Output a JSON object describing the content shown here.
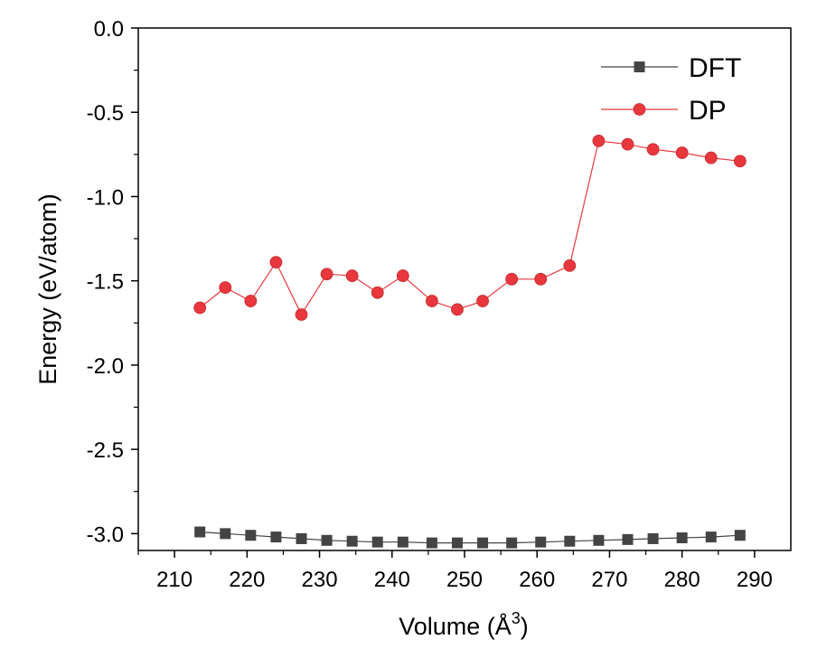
{
  "chart_data": {
    "type": "line",
    "xlabel": "Volume (Å",
    "xlabel_sup": "3",
    "xlabel_suffix": ")",
    "ylabel": "Energy (eV/atom)",
    "xlim": [
      205,
      295
    ],
    "ylim": [
      -3.1,
      0.0
    ],
    "xticks": [
      210,
      220,
      230,
      240,
      250,
      260,
      270,
      280,
      290
    ],
    "yticks": [
      0.0,
      -0.5,
      -1.0,
      -1.5,
      -2.0,
      -2.5,
      -3.0
    ],
    "xtick_labels": [
      "210",
      "220",
      "230",
      "240",
      "250",
      "260",
      "270",
      "280",
      "290"
    ],
    "ytick_labels": [
      "0.0",
      "-0.5",
      "-1.0",
      "-1.5",
      "-2.0",
      "-2.5",
      "-3.0"
    ],
    "grid": false,
    "legend_position": "top-right",
    "series": [
      {
        "name": "DFT",
        "color": "#444444",
        "marker": "square",
        "x": [
          213.5,
          217.0,
          220.5,
          224.0,
          227.5,
          231.0,
          234.5,
          238.0,
          241.5,
          245.5,
          249.0,
          252.5,
          256.5,
          260.5,
          264.5,
          268.5,
          272.5,
          276.0,
          280.0,
          284.0,
          288.0
        ],
        "y": [
          -2.99,
          -3.0,
          -3.01,
          -3.02,
          -3.03,
          -3.04,
          -3.045,
          -3.05,
          -3.05,
          -3.055,
          -3.055,
          -3.055,
          -3.055,
          -3.05,
          -3.045,
          -3.04,
          -3.035,
          -3.03,
          -3.025,
          -3.02,
          -3.01
        ]
      },
      {
        "name": "DP",
        "color": "#e8383d",
        "marker": "circle",
        "x": [
          213.5,
          217.0,
          220.5,
          224.0,
          227.5,
          231.0,
          234.5,
          238.0,
          241.5,
          245.5,
          249.0,
          252.5,
          256.5,
          260.5,
          264.5,
          268.5,
          272.5,
          276.0,
          280.0,
          284.0,
          288.0
        ],
        "y": [
          -1.66,
          -1.54,
          -1.62,
          -1.39,
          -1.7,
          -1.46,
          -1.47,
          -1.57,
          -1.47,
          -1.62,
          -1.67,
          -1.62,
          -1.49,
          -1.49,
          -1.41,
          -0.67,
          -0.69,
          -0.72,
          -0.74,
          -0.77,
          -0.79
        ]
      }
    ]
  }
}
